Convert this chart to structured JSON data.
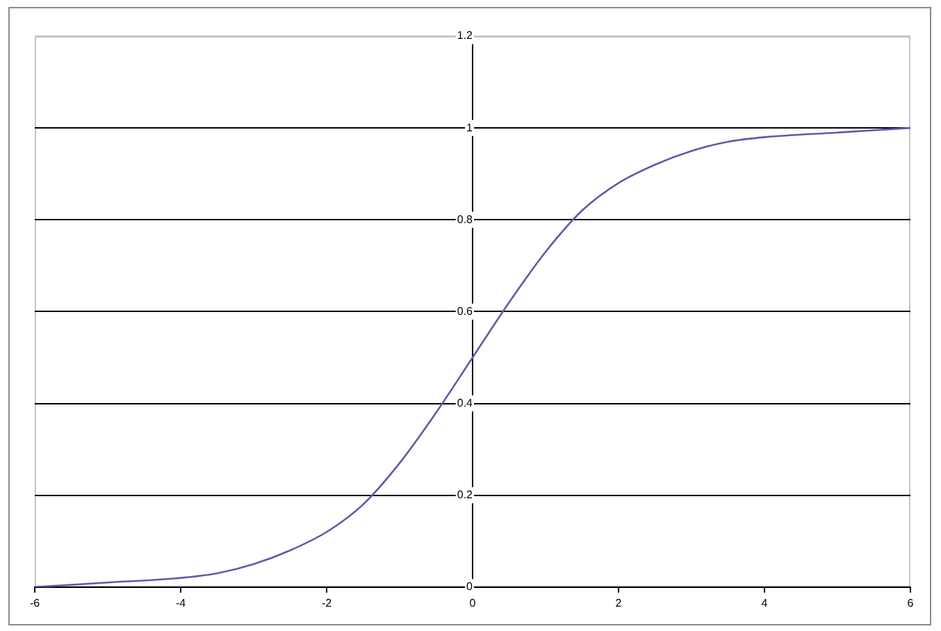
{
  "chart_data": {
    "type": "line",
    "x": [
      -6,
      -5,
      -4,
      -3.5,
      -3,
      -2.5,
      -2,
      -1.5,
      -1,
      -0.5,
      0,
      0.5,
      1,
      1.5,
      2,
      2.5,
      3,
      3.5,
      4,
      5,
      6
    ],
    "series": [
      {
        "color": "#5c5ca8",
        "values": [
          0.0,
          0.01,
          0.02,
          0.03,
          0.05,
          0.08,
          0.12,
          0.18,
          0.27,
          0.38,
          0.5,
          0.62,
          0.73,
          0.82,
          0.88,
          0.92,
          0.95,
          0.97,
          0.98,
          0.99,
          1.0
        ]
      }
    ],
    "xlim": [
      -6,
      6
    ],
    "xticks": [
      -6,
      -4,
      -2,
      0,
      2,
      4,
      6
    ],
    "ylim": [
      0,
      1.2
    ],
    "yticks": [
      0,
      0.2,
      0.4,
      0.6,
      0.8,
      1,
      1.2
    ],
    "grid": "y",
    "marker": "none",
    "line_style": "solid"
  }
}
